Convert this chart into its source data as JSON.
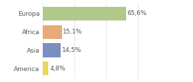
{
  "categories": [
    "Europa",
    "Africa",
    "Asia",
    "America"
  ],
  "values": [
    65.6,
    15.1,
    14.5,
    4.8
  ],
  "labels": [
    "65,6%",
    "15,1%",
    "14,5%",
    "4,8%"
  ],
  "bar_colors": [
    "#b0c98a",
    "#e8aa78",
    "#7a8fc0",
    "#e8d85a"
  ],
  "background_color": "#ffffff",
  "xlim": [
    0,
    100
  ],
  "bar_height": 0.75,
  "label_fontsize": 6.5,
  "tick_fontsize": 6.5,
  "grid_color": "#dddddd"
}
